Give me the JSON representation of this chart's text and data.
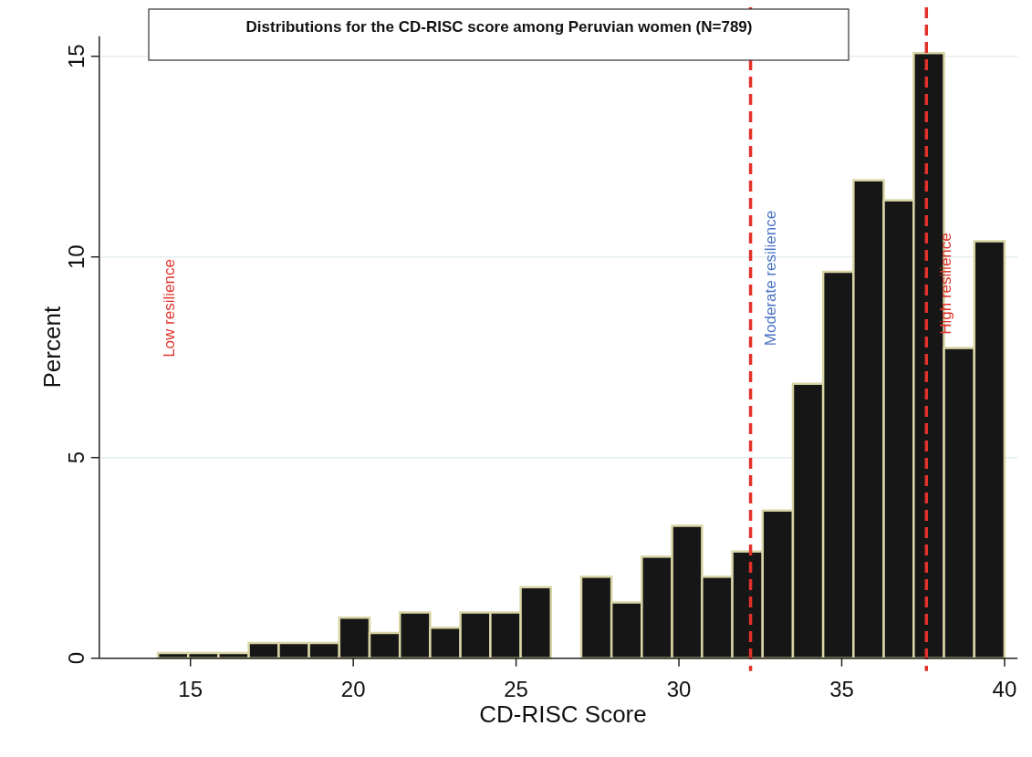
{
  "chart_data": {
    "type": "histogram",
    "title": "Distributions for the CD-RISC score among Peruvian women (N=789)",
    "xlabel": "CD-RISC Score",
    "ylabel": "Percent",
    "bins": [
      14,
      14.93,
      15.86,
      16.79,
      17.71,
      18.64,
      19.57,
      20.5,
      21.43,
      22.36,
      23.29,
      24.21,
      25.14,
      26.07,
      27,
      27.93,
      28.86,
      29.79,
      30.71,
      31.64,
      32.57,
      33.5,
      34.43,
      35.36,
      36.29,
      37.21,
      38.14,
      39.07,
      40
    ],
    "values": [
      0.13,
      0.13,
      0.13,
      0.38,
      0.38,
      0.38,
      1.01,
      0.63,
      1.14,
      0.76,
      1.14,
      1.14,
      1.77,
      0,
      2.03,
      1.39,
      2.53,
      3.3,
      2.03,
      2.66,
      3.68,
      6.84,
      9.63,
      11.91,
      11.41,
      15.08,
      7.73,
      10.39
    ],
    "color": "#161616",
    "xlim": [
      12.2,
      40.4
    ],
    "xticks": [
      15,
      20,
      25,
      30,
      35,
      40
    ],
    "ylim": [
      0,
      15.5
    ],
    "yticks": [
      0,
      5,
      10,
      15
    ],
    "grid": "y",
    "ref_lines": [
      {
        "axis": "x",
        "value": 32.2,
        "color": "#e0322a",
        "line_style": "dashed"
      },
      {
        "axis": "x",
        "value": 37.6,
        "color": "#e0322a",
        "line_style": "dashed"
      }
    ],
    "annotations": [
      "Low resilience",
      "Moderate resilience",
      "High resilience"
    ]
  }
}
